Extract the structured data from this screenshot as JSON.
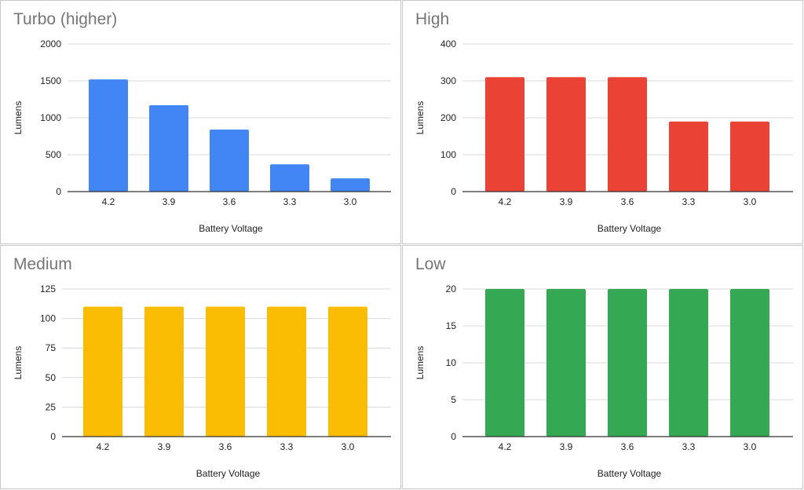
{
  "chart_data": [
    {
      "type": "bar",
      "title": "Turbo (higher)",
      "xlabel": "Battery Voltage",
      "ylabel": "Lumens",
      "categories": [
        "4.2",
        "3.9",
        "3.6",
        "3.3",
        "3.0"
      ],
      "values": [
        1520,
        1170,
        840,
        370,
        180
      ],
      "ylim": [
        0,
        2000
      ],
      "yticks": [
        "0",
        "500",
        "1000",
        "1500",
        "2000"
      ],
      "grid": true,
      "color": "#4285f4"
    },
    {
      "type": "bar",
      "title": "High",
      "xlabel": "Battery Voltage",
      "ylabel": "Lumens",
      "categories": [
        "4.2",
        "3.9",
        "3.6",
        "3.3",
        "3.0"
      ],
      "values": [
        310,
        310,
        310,
        190,
        190
      ],
      "ylim": [
        0,
        400
      ],
      "yticks": [
        "0",
        "100",
        "200",
        "300",
        "400"
      ],
      "grid": true,
      "color": "#ea4335"
    },
    {
      "type": "bar",
      "title": "Medium",
      "xlabel": "Battery Voltage",
      "ylabel": "Lumens",
      "categories": [
        "4.2",
        "3.9",
        "3.6",
        "3.3",
        "3.0"
      ],
      "values": [
        110,
        110,
        110,
        110,
        110
      ],
      "ylim": [
        0,
        125
      ],
      "yticks": [
        "0",
        "25",
        "50",
        "75",
        "100",
        "125"
      ],
      "grid": true,
      "color": "#fbbc04"
    },
    {
      "type": "bar",
      "title": "Low",
      "xlabel": "Battery Voltage",
      "ylabel": "Lumens",
      "categories": [
        "4.2",
        "3.9",
        "3.6",
        "3.3",
        "3.0"
      ],
      "values": [
        20,
        20,
        20,
        20,
        20
      ],
      "ylim": [
        0,
        20
      ],
      "yticks": [
        "0",
        "5",
        "10",
        "15",
        "20"
      ],
      "grid": true,
      "color": "#34a853"
    }
  ]
}
